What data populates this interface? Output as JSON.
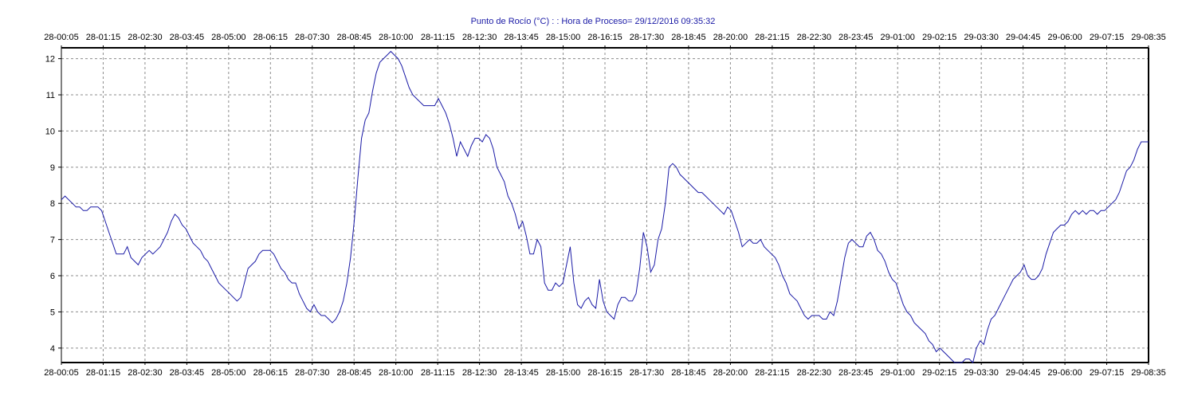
{
  "chart_data": {
    "type": "line",
    "title": "Punto de Rocío (°C) : : Hora de Proceso= 29/12/2016 09:35:32",
    "xlabel": "",
    "ylabel": "",
    "grid": true,
    "legend": "none",
    "line_color": "#1a1aa6",
    "ylim": [
      3.6,
      12.3
    ],
    "y_ticks": [
      4,
      5,
      6,
      7,
      8,
      9,
      10,
      11,
      12
    ],
    "x_ticks": [
      "28-00:05",
      "28-01:15",
      "28-02:30",
      "28-03:45",
      "28-05:00",
      "28-06:15",
      "28-07:30",
      "28-08:45",
      "28-10:00",
      "28-11:15",
      "28-12:30",
      "28-13:45",
      "28-15:00",
      "28-16:15",
      "28-17:30",
      "28-18:45",
      "28-20:00",
      "28-21:15",
      "28-22:30",
      "28-23:45",
      "29-01:00",
      "29-02:15",
      "29-03:30",
      "29-04:45",
      "29-06:00",
      "29-07:15",
      "29-08:35"
    ],
    "series": [
      {
        "x_start": "28-00:05",
        "x_end": "29-08:35",
        "y": [
          8.1,
          8.2,
          8.1,
          8.0,
          7.9,
          7.9,
          7.8,
          7.8,
          7.9,
          7.9,
          7.9,
          7.8,
          7.5,
          7.2,
          6.9,
          6.6,
          6.6,
          6.6,
          6.8,
          6.5,
          6.4,
          6.3,
          6.5,
          6.6,
          6.7,
          6.6,
          6.7,
          6.8,
          7.0,
          7.2,
          7.5,
          7.7,
          7.6,
          7.4,
          7.3,
          7.1,
          6.9,
          6.8,
          6.7,
          6.5,
          6.4,
          6.2,
          6.0,
          5.8,
          5.7,
          5.6,
          5.5,
          5.4,
          5.3,
          5.4,
          5.8,
          6.2,
          6.3,
          6.4,
          6.6,
          6.7,
          6.7,
          6.7,
          6.6,
          6.4,
          6.2,
          6.1,
          5.9,
          5.8,
          5.8,
          5.5,
          5.3,
          5.1,
          5.0,
          5.2,
          5.0,
          4.9,
          4.9,
          4.8,
          4.7,
          4.8,
          5.0,
          5.3,
          5.8,
          6.5,
          7.5,
          8.7,
          9.8,
          10.3,
          10.5,
          11.1,
          11.6,
          11.9,
          12.0,
          12.1,
          12.2,
          12.1,
          12.0,
          11.8,
          11.5,
          11.2,
          11.0,
          10.9,
          10.8,
          10.7,
          10.7,
          10.7,
          10.7,
          10.9,
          10.7,
          10.5,
          10.2,
          9.8,
          9.3,
          9.7,
          9.5,
          9.3,
          9.6,
          9.8,
          9.8,
          9.7,
          9.9,
          9.8,
          9.5,
          9.0,
          8.8,
          8.6,
          8.2,
          8.0,
          7.7,
          7.3,
          7.5,
          7.1,
          6.6,
          6.6,
          7.0,
          6.8,
          5.8,
          5.6,
          5.6,
          5.8,
          5.7,
          5.8,
          6.3,
          6.8,
          5.8,
          5.2,
          5.1,
          5.3,
          5.4,
          5.2,
          5.1,
          5.9,
          5.3,
          5.0,
          4.9,
          4.8,
          5.2,
          5.4,
          5.4,
          5.3,
          5.3,
          5.5,
          6.2,
          7.2,
          6.8,
          6.1,
          6.3,
          7.0,
          7.3,
          8.0,
          9.0,
          9.1,
          9.0,
          8.8,
          8.7,
          8.6,
          8.5,
          8.4,
          8.3,
          8.3,
          8.2,
          8.1,
          8.0,
          7.9,
          7.8,
          7.7,
          7.9,
          7.8,
          7.5,
          7.2,
          6.8,
          6.9,
          7.0,
          6.9,
          6.9,
          7.0,
          6.8,
          6.7,
          6.6,
          6.5,
          6.3,
          6.0,
          5.8,
          5.5,
          5.4,
          5.3,
          5.1,
          4.9,
          4.8,
          4.9,
          4.9,
          4.9,
          4.8,
          4.8,
          5.0,
          4.9,
          5.3,
          5.9,
          6.5,
          6.9,
          7.0,
          6.9,
          6.8,
          6.8,
          7.1,
          7.2,
          7.0,
          6.7,
          6.6,
          6.4,
          6.1,
          5.9,
          5.8,
          5.5,
          5.2,
          5.0,
          4.9,
          4.7,
          4.6,
          4.5,
          4.4,
          4.2,
          4.1,
          3.9,
          4.0,
          3.9,
          3.8,
          3.7,
          3.6,
          3.6,
          3.6,
          3.7,
          3.7,
          3.6,
          4.0,
          4.2,
          4.1,
          4.5,
          4.8,
          4.9,
          5.1,
          5.3,
          5.5,
          5.7,
          5.9,
          6.0,
          6.1,
          6.3,
          6.0,
          5.9,
          5.9,
          6.0,
          6.2,
          6.6,
          6.9,
          7.2,
          7.3,
          7.4,
          7.4,
          7.5,
          7.7,
          7.8,
          7.7,
          7.8,
          7.7,
          7.8,
          7.8,
          7.7,
          7.8,
          7.8,
          7.9,
          8.0,
          8.1,
          8.3,
          8.6,
          8.9,
          9.0,
          9.2,
          9.5,
          9.7,
          9.7,
          9.7
        ]
      }
    ]
  }
}
